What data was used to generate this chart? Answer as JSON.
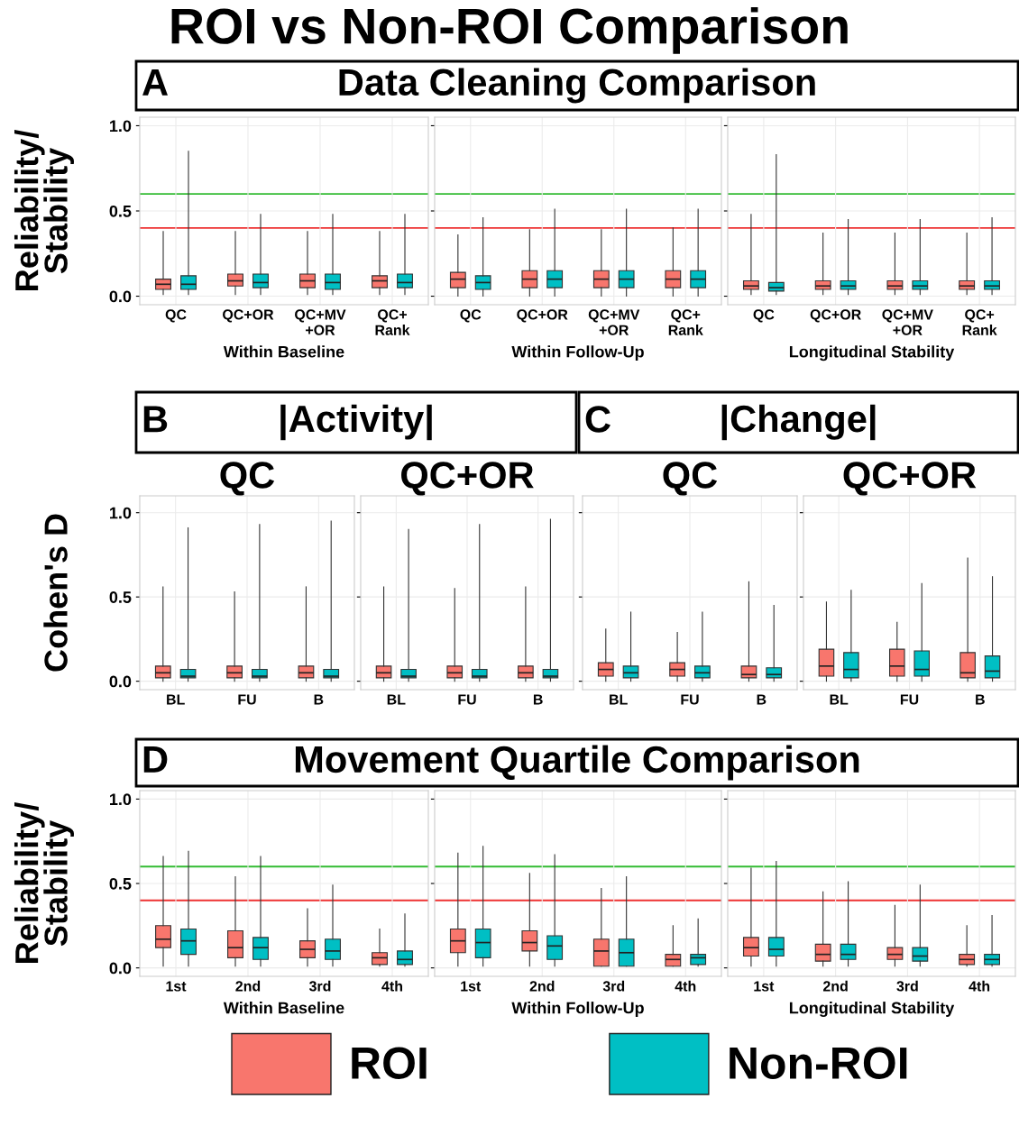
{
  "chart_data": [
    {
      "type": "box",
      "title": "ROI vs Non-ROI Comparison",
      "subtitle": "Data Cleaning Comparison",
      "annotations": [
        "A"
      ],
      "ylabel": "Reliability/\nStability",
      "xlabel": "Within Baseline",
      "categories": [
        "QC",
        "QC+OR",
        "QC+MV\n+OR",
        "QC+\nRank"
      ],
      "ylim": [
        -0.05,
        1.05
      ],
      "yticks": [
        {
          "value": 0,
          "label": "0.0"
        },
        {
          "value": 0.5,
          "label": "0.5"
        },
        {
          "value": 1,
          "label": "1.0"
        }
      ],
      "grid": true,
      "legend": "bottom",
      "ref_lines": [
        {
          "axis": "y",
          "value": 0.6,
          "color": "#33bb33"
        },
        {
          "axis": "y",
          "value": 0.4,
          "color": "#ee3333"
        }
      ],
      "series": [
        {
          "name": "ROI",
          "color": "#f8766d",
          "boxes": [
            {
              "low": 0.01,
              "q1": 0.04,
              "median": 0.07,
              "q3": 0.1,
              "high": 0.38
            },
            {
              "low": 0.01,
              "q1": 0.06,
              "median": 0.09,
              "q3": 0.13,
              "high": 0.38
            },
            {
              "low": 0.01,
              "q1": 0.05,
              "median": 0.09,
              "q3": 0.13,
              "high": 0.38
            },
            {
              "low": 0.01,
              "q1": 0.05,
              "median": 0.09,
              "q3": 0.12,
              "high": 0.38
            }
          ]
        },
        {
          "name": "Non-ROI",
          "color": "#00bfc4",
          "boxes": [
            {
              "low": 0.01,
              "q1": 0.04,
              "median": 0.07,
              "q3": 0.12,
              "high": 0.85
            },
            {
              "low": 0.01,
              "q1": 0.05,
              "median": 0.08,
              "q3": 0.13,
              "high": 0.48
            },
            {
              "low": 0.01,
              "q1": 0.04,
              "median": 0.08,
              "q3": 0.13,
              "high": 0.48
            },
            {
              "low": 0.01,
              "q1": 0.05,
              "median": 0.08,
              "q3": 0.13,
              "high": 0.48
            }
          ]
        }
      ]
    },
    {
      "type": "box",
      "xlabel": "Within Follow-Up",
      "categories": [
        "QC",
        "QC+OR",
        "QC+MV\n+OR",
        "QC+\nRank"
      ],
      "ylim": [
        -0.05,
        1.05
      ],
      "yticks": [
        0,
        0.5,
        1
      ],
      "grid": true,
      "tick_labels": "x",
      "ref_lines": [
        {
          "axis": "y",
          "value": 0.6,
          "color": "#33bb33"
        },
        {
          "axis": "y",
          "value": 0.4,
          "color": "#ee3333"
        }
      ],
      "series": [
        {
          "name": "ROI",
          "color": "#f8766d",
          "boxes": [
            {
              "low": 0.0,
              "q1": 0.05,
              "median": 0.1,
              "q3": 0.14,
              "high": 0.36
            },
            {
              "low": 0.0,
              "q1": 0.05,
              "median": 0.1,
              "q3": 0.15,
              "high": 0.39
            },
            {
              "low": 0.0,
              "q1": 0.05,
              "median": 0.1,
              "q3": 0.15,
              "high": 0.39
            },
            {
              "low": 0.0,
              "q1": 0.05,
              "median": 0.1,
              "q3": 0.15,
              "high": 0.4
            }
          ]
        },
        {
          "name": "Non-ROI",
          "color": "#00bfc4",
          "boxes": [
            {
              "low": 0.0,
              "q1": 0.04,
              "median": 0.08,
              "q3": 0.12,
              "high": 0.46
            },
            {
              "low": 0.0,
              "q1": 0.05,
              "median": 0.1,
              "q3": 0.15,
              "high": 0.51
            },
            {
              "low": 0.0,
              "q1": 0.05,
              "median": 0.1,
              "q3": 0.15,
              "high": 0.51
            },
            {
              "low": 0.0,
              "q1": 0.05,
              "median": 0.1,
              "q3": 0.15,
              "high": 0.51
            }
          ]
        }
      ]
    },
    {
      "type": "box",
      "xlabel": "Longitudinal Stability",
      "categories": [
        "QC",
        "QC+OR",
        "QC+MV\n+OR",
        "QC+\nRank"
      ],
      "ylim": [
        -0.05,
        1.05
      ],
      "yticks": [
        0,
        0.5,
        1
      ],
      "grid": true,
      "tick_labels": "x",
      "ref_lines": [
        {
          "axis": "y",
          "value": 0.6,
          "color": "#33bb33"
        },
        {
          "axis": "y",
          "value": 0.4,
          "color": "#ee3333"
        }
      ],
      "series": [
        {
          "name": "ROI",
          "color": "#f8766d",
          "boxes": [
            {
              "low": 0.01,
              "q1": 0.04,
              "median": 0.06,
              "q3": 0.09,
              "high": 0.48
            },
            {
              "low": 0.01,
              "q1": 0.04,
              "median": 0.06,
              "q3": 0.09,
              "high": 0.37
            },
            {
              "low": 0.01,
              "q1": 0.04,
              "median": 0.06,
              "q3": 0.09,
              "high": 0.37
            },
            {
              "low": 0.01,
              "q1": 0.04,
              "median": 0.06,
              "q3": 0.09,
              "high": 0.37
            }
          ]
        },
        {
          "name": "Non-ROI",
          "color": "#00bfc4",
          "boxes": [
            {
              "low": 0.01,
              "q1": 0.03,
              "median": 0.05,
              "q3": 0.08,
              "high": 0.83
            },
            {
              "low": 0.01,
              "q1": 0.04,
              "median": 0.06,
              "q3": 0.09,
              "high": 0.45
            },
            {
              "low": 0.01,
              "q1": 0.04,
              "median": 0.06,
              "q3": 0.09,
              "high": 0.45
            },
            {
              "low": 0.01,
              "q1": 0.04,
              "median": 0.06,
              "q3": 0.09,
              "high": 0.46
            }
          ]
        }
      ]
    },
    {
      "type": "box",
      "title": "QC",
      "subtitle": "|Activity|",
      "annotations": [
        "B"
      ],
      "ylabel": "Cohen's D",
      "categories": [
        "BL",
        "FU",
        "B"
      ],
      "ylim": [
        -0.05,
        1.1
      ],
      "yticks": [
        {
          "value": 0,
          "label": "0.0"
        },
        {
          "value": 0.5,
          "label": "0.5"
        },
        {
          "value": 1,
          "label": "1.0"
        }
      ],
      "grid": true,
      "series": [
        {
          "name": "ROI",
          "color": "#f8766d",
          "boxes": [
            {
              "low": 0.0,
              "q1": 0.02,
              "median": 0.05,
              "q3": 0.09,
              "high": 0.56
            },
            {
              "low": 0.0,
              "q1": 0.02,
              "median": 0.05,
              "q3": 0.09,
              "high": 0.53
            },
            {
              "low": 0.0,
              "q1": 0.02,
              "median": 0.05,
              "q3": 0.09,
              "high": 0.56
            }
          ]
        },
        {
          "name": "Non-ROI",
          "color": "#00bfc4",
          "boxes": [
            {
              "low": 0.0,
              "q1": 0.02,
              "median": 0.03,
              "q3": 0.07,
              "high": 0.91
            },
            {
              "low": 0.0,
              "q1": 0.02,
              "median": 0.03,
              "q3": 0.07,
              "high": 0.93
            },
            {
              "low": 0.0,
              "q1": 0.02,
              "median": 0.03,
              "q3": 0.07,
              "high": 0.95
            }
          ]
        }
      ]
    },
    {
      "type": "box",
      "title": "QC+OR",
      "categories": [
        "BL",
        "FU",
        "B"
      ],
      "ylim": [
        -0.05,
        1.1
      ],
      "yticks": [
        0,
        0.5,
        1
      ],
      "grid": true,
      "tick_labels": "x",
      "series": [
        {
          "name": "ROI",
          "color": "#f8766d",
          "boxes": [
            {
              "low": 0.0,
              "q1": 0.02,
              "median": 0.05,
              "q3": 0.09,
              "high": 0.56
            },
            {
              "low": 0.0,
              "q1": 0.02,
              "median": 0.05,
              "q3": 0.09,
              "high": 0.55
            },
            {
              "low": 0.0,
              "q1": 0.02,
              "median": 0.05,
              "q3": 0.09,
              "high": 0.56
            }
          ]
        },
        {
          "name": "Non-ROI",
          "color": "#00bfc4",
          "boxes": [
            {
              "low": 0.0,
              "q1": 0.02,
              "median": 0.03,
              "q3": 0.07,
              "high": 0.9
            },
            {
              "low": 0.0,
              "q1": 0.02,
              "median": 0.03,
              "q3": 0.07,
              "high": 0.93
            },
            {
              "low": 0.0,
              "q1": 0.02,
              "median": 0.03,
              "q3": 0.07,
              "high": 0.96
            }
          ]
        }
      ]
    },
    {
      "type": "box",
      "title": "QC",
      "subtitle": "|Change|",
      "annotations": [
        "C"
      ],
      "categories": [
        "BL",
        "FU",
        "B"
      ],
      "ylim": [
        -0.05,
        1.1
      ],
      "yticks": [
        0,
        0.5,
        1
      ],
      "grid": true,
      "tick_labels": "x",
      "series": [
        {
          "name": "ROI",
          "color": "#f8766d",
          "boxes": [
            {
              "low": 0.0,
              "q1": 0.03,
              "median": 0.07,
              "q3": 0.11,
              "high": 0.31
            },
            {
              "low": 0.0,
              "q1": 0.03,
              "median": 0.07,
              "q3": 0.11,
              "high": 0.29
            },
            {
              "low": 0.0,
              "q1": 0.02,
              "median": 0.04,
              "q3": 0.09,
              "high": 0.59
            }
          ]
        },
        {
          "name": "Non-ROI",
          "color": "#00bfc4",
          "boxes": [
            {
              "low": 0.0,
              "q1": 0.02,
              "median": 0.05,
              "q3": 0.09,
              "high": 0.41
            },
            {
              "low": 0.0,
              "q1": 0.02,
              "median": 0.05,
              "q3": 0.09,
              "high": 0.41
            },
            {
              "low": 0.0,
              "q1": 0.02,
              "median": 0.04,
              "q3": 0.08,
              "high": 0.45
            }
          ]
        }
      ]
    },
    {
      "type": "box",
      "title": "QC+OR",
      "categories": [
        "BL",
        "FU",
        "B"
      ],
      "ylim": [
        -0.05,
        1.1
      ],
      "yticks": [
        0,
        0.5,
        1
      ],
      "grid": true,
      "tick_labels": "x",
      "series": [
        {
          "name": "ROI",
          "color": "#f8766d",
          "boxes": [
            {
              "low": 0.0,
              "q1": 0.03,
              "median": 0.09,
              "q3": 0.19,
              "high": 0.47
            },
            {
              "low": 0.0,
              "q1": 0.03,
              "median": 0.09,
              "q3": 0.19,
              "high": 0.35
            },
            {
              "low": 0.0,
              "q1": 0.02,
              "median": 0.05,
              "q3": 0.17,
              "high": 0.73
            }
          ]
        },
        {
          "name": "Non-ROI",
          "color": "#00bfc4",
          "boxes": [
            {
              "low": 0.0,
              "q1": 0.02,
              "median": 0.07,
              "q3": 0.17,
              "high": 0.54
            },
            {
              "low": 0.0,
              "q1": 0.03,
              "median": 0.07,
              "q3": 0.18,
              "high": 0.58
            },
            {
              "low": 0.0,
              "q1": 0.02,
              "median": 0.06,
              "q3": 0.15,
              "high": 0.62
            }
          ]
        }
      ]
    },
    {
      "type": "box",
      "subtitle": "Movement Quartile Comparison",
      "annotations": [
        "D"
      ],
      "ylabel": "Reliability/\nStability",
      "xlabel": "Within Baseline",
      "categories": [
        "1st",
        "2nd",
        "3rd",
        "4th"
      ],
      "ylim": [
        -0.05,
        1.05
      ],
      "yticks": [
        {
          "value": 0,
          "label": "0.0"
        },
        {
          "value": 0.5,
          "label": "0.5"
        },
        {
          "value": 1,
          "label": "1.0"
        }
      ],
      "grid": true,
      "ref_lines": [
        {
          "axis": "y",
          "value": 0.6,
          "color": "#33bb33"
        },
        {
          "axis": "y",
          "value": 0.4,
          "color": "#ee3333"
        }
      ],
      "series": [
        {
          "name": "ROI",
          "color": "#f8766d",
          "boxes": [
            {
              "low": 0.01,
              "q1": 0.12,
              "median": 0.17,
              "q3": 0.25,
              "high": 0.66
            },
            {
              "low": 0.01,
              "q1": 0.06,
              "median": 0.12,
              "q3": 0.22,
              "high": 0.54
            },
            {
              "low": 0.01,
              "q1": 0.06,
              "median": 0.11,
              "q3": 0.16,
              "high": 0.35
            },
            {
              "low": 0.01,
              "q1": 0.02,
              "median": 0.06,
              "q3": 0.09,
              "high": 0.23
            }
          ]
        },
        {
          "name": "Non-ROI",
          "color": "#00bfc4",
          "boxes": [
            {
              "low": 0.01,
              "q1": 0.08,
              "median": 0.16,
              "q3": 0.23,
              "high": 0.69
            },
            {
              "low": 0.01,
              "q1": 0.05,
              "median": 0.12,
              "q3": 0.18,
              "high": 0.66
            },
            {
              "low": 0.01,
              "q1": 0.05,
              "median": 0.1,
              "q3": 0.17,
              "high": 0.49
            },
            {
              "low": 0.01,
              "q1": 0.02,
              "median": 0.05,
              "q3": 0.1,
              "high": 0.32
            }
          ]
        }
      ]
    },
    {
      "type": "box",
      "xlabel": "Within Follow-Up",
      "categories": [
        "1st",
        "2nd",
        "3rd",
        "4th"
      ],
      "ylim": [
        -0.05,
        1.05
      ],
      "yticks": [
        0,
        0.5,
        1
      ],
      "grid": true,
      "tick_labels": "x",
      "ref_lines": [
        {
          "axis": "y",
          "value": 0.6,
          "color": "#33bb33"
        },
        {
          "axis": "y",
          "value": 0.4,
          "color": "#ee3333"
        }
      ],
      "series": [
        {
          "name": "ROI",
          "color": "#f8766d",
          "boxes": [
            {
              "low": 0.01,
              "q1": 0.09,
              "median": 0.16,
              "q3": 0.23,
              "high": 0.68
            },
            {
              "low": 0.01,
              "q1": 0.1,
              "median": 0.15,
              "q3": 0.22,
              "high": 0.56
            },
            {
              "low": 0.01,
              "q1": 0.01,
              "median": 0.1,
              "q3": 0.17,
              "high": 0.47
            },
            {
              "low": 0.01,
              "q1": 0.01,
              "median": 0.05,
              "q3": 0.08,
              "high": 0.25
            }
          ]
        },
        {
          "name": "Non-ROI",
          "color": "#00bfc4",
          "boxes": [
            {
              "low": 0.01,
              "q1": 0.06,
              "median": 0.15,
              "q3": 0.23,
              "high": 0.72
            },
            {
              "low": 0.01,
              "q1": 0.05,
              "median": 0.13,
              "q3": 0.19,
              "high": 0.67
            },
            {
              "low": 0.01,
              "q1": 0.01,
              "median": 0.09,
              "q3": 0.17,
              "high": 0.54
            },
            {
              "low": 0.01,
              "q1": 0.02,
              "median": 0.06,
              "q3": 0.08,
              "high": 0.29
            }
          ]
        }
      ]
    },
    {
      "type": "box",
      "xlabel": "Longitudinal Stability",
      "categories": [
        "1st",
        "2nd",
        "3rd",
        "4th"
      ],
      "ylim": [
        -0.05,
        1.05
      ],
      "yticks": [
        0,
        0.5,
        1
      ],
      "grid": true,
      "tick_labels": "x",
      "ref_lines": [
        {
          "axis": "y",
          "value": 0.6,
          "color": "#33bb33"
        },
        {
          "axis": "y",
          "value": 0.4,
          "color": "#ee3333"
        }
      ],
      "series": [
        {
          "name": "ROI",
          "color": "#f8766d",
          "boxes": [
            {
              "low": 0.01,
              "q1": 0.07,
              "median": 0.12,
              "q3": 0.18,
              "high": 0.59
            },
            {
              "low": 0.01,
              "q1": 0.04,
              "median": 0.08,
              "q3": 0.14,
              "high": 0.45
            },
            {
              "low": 0.01,
              "q1": 0.05,
              "median": 0.08,
              "q3": 0.12,
              "high": 0.37
            },
            {
              "low": 0.01,
              "q1": 0.02,
              "median": 0.05,
              "q3": 0.08,
              "high": 0.25
            }
          ]
        },
        {
          "name": "Non-ROI",
          "color": "#00bfc4",
          "boxes": [
            {
              "low": 0.01,
              "q1": 0.07,
              "median": 0.11,
              "q3": 0.18,
              "high": 0.63
            },
            {
              "low": 0.01,
              "q1": 0.05,
              "median": 0.08,
              "q3": 0.14,
              "high": 0.51
            },
            {
              "low": 0.01,
              "q1": 0.04,
              "median": 0.07,
              "q3": 0.12,
              "high": 0.49
            },
            {
              "low": 0.01,
              "q1": 0.02,
              "median": 0.05,
              "q3": 0.08,
              "high": 0.31
            }
          ]
        }
      ]
    }
  ]
}
